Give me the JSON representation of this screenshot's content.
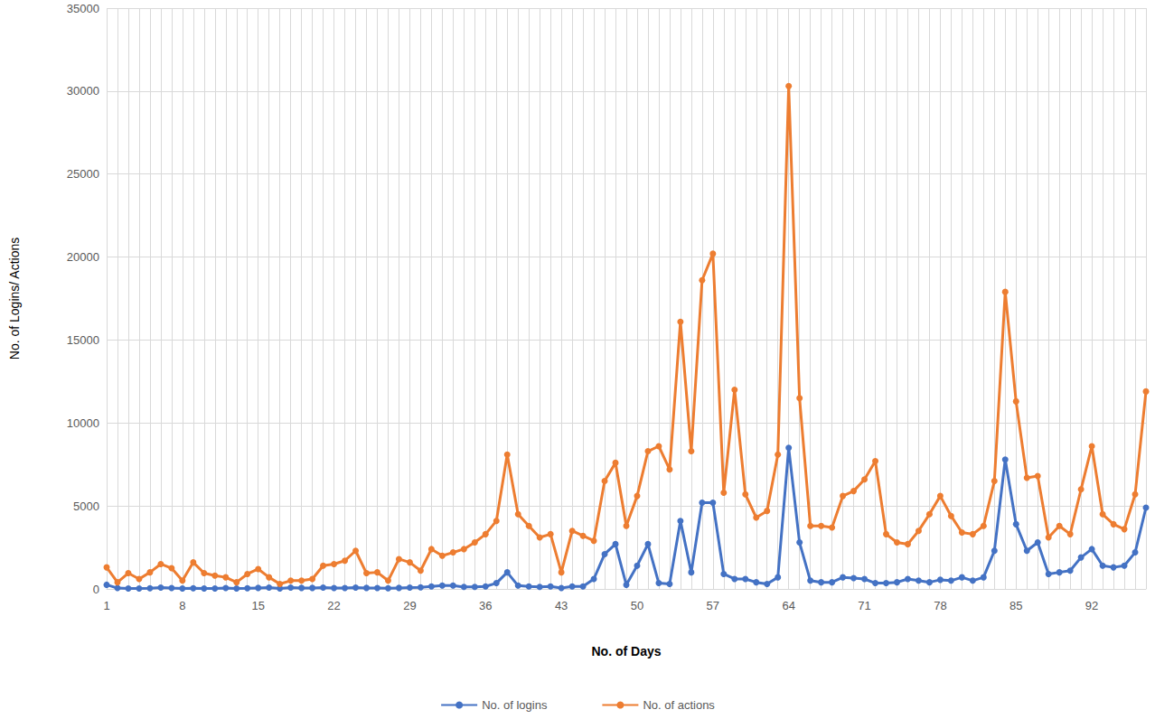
{
  "chart_data": {
    "type": "line",
    "x_label": "No. of Days",
    "y_label": "No. of Logins/ Actions",
    "categories": [
      "1",
      null,
      null,
      null,
      null,
      null,
      null,
      "8",
      null,
      null,
      null,
      null,
      null,
      null,
      "15",
      null,
      null,
      null,
      null,
      null,
      null,
      "22",
      null,
      null,
      null,
      null,
      null,
      null,
      "29",
      null,
      null,
      null,
      null,
      null,
      null,
      "36",
      null,
      null,
      null,
      null,
      null,
      null,
      "43",
      null,
      null,
      null,
      null,
      null,
      null,
      "50",
      null,
      null,
      null,
      null,
      null,
      null,
      "57",
      null,
      null,
      null,
      null,
      null,
      null,
      "64",
      null,
      null,
      null,
      null,
      null,
      null,
      "71",
      null,
      null,
      null,
      null,
      null,
      null,
      "78",
      null,
      null,
      null,
      null,
      null,
      null,
      "85",
      null,
      null,
      null,
      null,
      null,
      null,
      "92",
      null,
      null,
      null,
      null,
      null
    ],
    "series": [
      {
        "name": "No. of logins",
        "color": "#4472c4",
        "values": [
          250,
          50,
          30,
          30,
          40,
          80,
          50,
          30,
          40,
          30,
          30,
          50,
          30,
          40,
          60,
          80,
          30,
          80,
          60,
          60,
          80,
          50,
          50,
          80,
          60,
          50,
          40,
          60,
          80,
          100,
          150,
          200,
          200,
          120,
          120,
          150,
          350,
          1000,
          200,
          150,
          120,
          150,
          50,
          150,
          150,
          600,
          2100,
          2700,
          250,
          1400,
          2700,
          350,
          300,
          4100,
          1000,
          5200,
          5200,
          900,
          600,
          600,
          400,
          300,
          700,
          8500,
          2800,
          500,
          400,
          400,
          700,
          650,
          600,
          350,
          350,
          400,
          600,
          500,
          400,
          550,
          500,
          700,
          500,
          700,
          2300,
          7800,
          3900,
          2300,
          2800,
          900,
          1000,
          1100,
          1900,
          2400,
          1400,
          1300,
          1400,
          2200,
          4900
        ]
      },
      {
        "name": "No. of actions",
        "color": "#ed7d31",
        "values": [
          1300,
          400,
          950,
          600,
          1000,
          1500,
          1250,
          500,
          1600,
          950,
          800,
          700,
          400,
          900,
          1200,
          700,
          300,
          500,
          500,
          600,
          1400,
          1500,
          1700,
          2300,
          950,
          1000,
          500,
          1800,
          1600,
          1100,
          2400,
          2000,
          2200,
          2400,
          2800,
          3300,
          4100,
          8100,
          4500,
          3800,
          3100,
          3300,
          1000,
          3500,
          3200,
          2900,
          6500,
          7600,
          3800,
          5600,
          8300,
          8600,
          7200,
          16100,
          8300,
          18600,
          20200,
          5800,
          12000,
          5700,
          4300,
          4700,
          8100,
          30300,
          11500,
          3800,
          3800,
          3700,
          5600,
          5900,
          6600,
          7700,
          3300,
          2800,
          2700,
          3500,
          4500,
          5600,
          4400,
          3400,
          3300,
          3800,
          6500,
          17900,
          11300,
          6700,
          6800,
          3100,
          3800,
          3300,
          6000,
          8600,
          4500,
          3900,
          3600,
          5700,
          11900
        ]
      }
    ],
    "ylim": [
      0,
      35000
    ],
    "yticks": [
      0,
      5000,
      10000,
      15000,
      20000,
      25000,
      30000,
      35000
    ],
    "grid": true,
    "legend": "bottom",
    "marker": "circle"
  }
}
